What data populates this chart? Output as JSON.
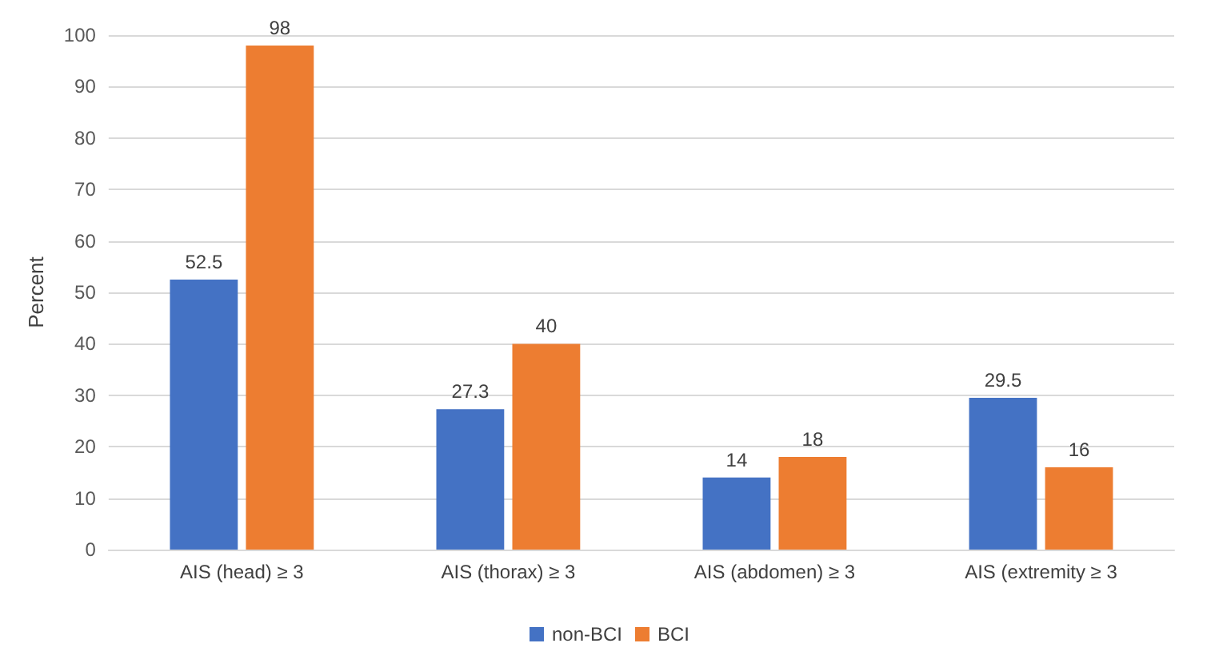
{
  "chart_data": {
    "type": "bar",
    "ylabel": "Percent",
    "categories": [
      "AIS (head) ≥ 3",
      "AIS (thorax) ≥ 3",
      "AIS (abdomen) ≥ 3",
      "AIS (extremity ≥ 3"
    ],
    "series": [
      {
        "name": "non-BCI",
        "color": "#4472c4",
        "values": [
          52.5,
          27.3,
          14,
          29.5
        ]
      },
      {
        "name": "BCI",
        "color": "#ed7d31",
        "values": [
          98,
          40,
          18,
          16
        ]
      }
    ],
    "ylim": [
      0,
      100
    ],
    "yticks": [
      0,
      10,
      20,
      30,
      40,
      50,
      60,
      70,
      80,
      90,
      100
    ],
    "grid": "y",
    "legend": "bottom",
    "data_labels": true
  }
}
